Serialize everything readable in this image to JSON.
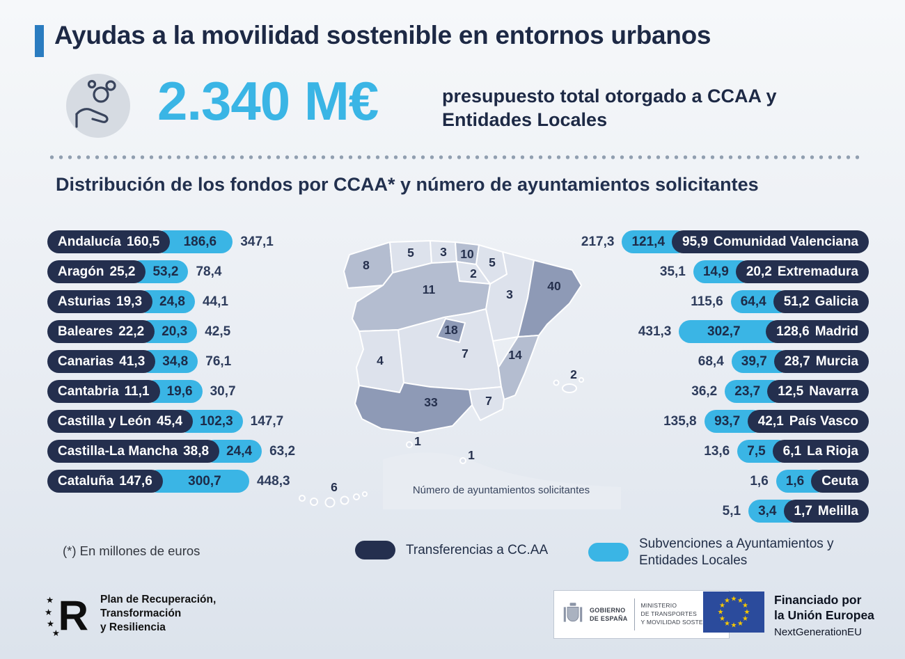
{
  "colors": {
    "background_top": "#f6f8fa",
    "background_bottom": "#dce3ec",
    "navy": "#242f4e",
    "cyan": "#3ab5e5",
    "accent_bar_blue": "#2a7cc0",
    "map_shade_low": "#dde2ec",
    "map_shade_mid": "#b4bdd0",
    "map_shade_high": "#8e9ab6",
    "eu_flag_blue": "#2b4b9c",
    "eu_star_yellow": "#f7c700"
  },
  "header": {
    "title": "Ayudas a la movilidad sostenible en entornos urbanos",
    "amount": "2.340 M€",
    "amount_description": "presupuesto total otorgado a CCAA y Entidades Locales"
  },
  "section": {
    "subtitle": "Distribución de los fondos por CCAA* y número de ayuntamientos solicitantes"
  },
  "chart_data": {
    "type": "bar",
    "unit": "millones de euros",
    "title": "Distribución de los fondos por CCAA* y número de ayuntamientos solicitantes",
    "categories": [
      "Andalucía",
      "Aragón",
      "Asturias",
      "Baleares",
      "Canarias",
      "Cantabria",
      "Castilla y León",
      "Castilla-La Mancha",
      "Cataluña",
      "Comunidad Valenciana",
      "Extremadura",
      "Galicia",
      "Madrid",
      "Murcia",
      "Navarra",
      "País Vasco",
      "La Rioja",
      "Ceuta",
      "Melilla"
    ],
    "series": [
      {
        "name": "Transferencias a CC.AA",
        "values": [
          160.5,
          25.2,
          19.3,
          22.2,
          41.3,
          11.1,
          45.4,
          38.8,
          147.6,
          95.9,
          20.2,
          51.2,
          128.6,
          28.7,
          12.5,
          42.1,
          6.1,
          null,
          1.7
        ]
      },
      {
        "name": "Subvenciones a Ayuntamientos y Entidades Locales",
        "values": [
          186.6,
          53.2,
          24.8,
          20.3,
          34.8,
          19.6,
          102.3,
          24.4,
          300.7,
          121.4,
          14.9,
          64.4,
          302.7,
          39.7,
          23.7,
          93.7,
          7.5,
          1.6,
          3.4
        ]
      }
    ],
    "totals": [
      347.1,
      78.4,
      44.1,
      42.5,
      76.1,
      30.7,
      147.7,
      63.2,
      448.3,
      217.3,
      35.1,
      115.6,
      431.3,
      68.4,
      36.2,
      135.8,
      13.6,
      1.6,
      5.1
    ],
    "left_rows": [
      {
        "name": "Andalucía",
        "transferencias": "160,5",
        "subvenciones": "186,6",
        "total": "347,1"
      },
      {
        "name": "Aragón",
        "transferencias": "25,2",
        "subvenciones": "53,2",
        "total": "78,4"
      },
      {
        "name": "Asturias",
        "transferencias": "19,3",
        "subvenciones": "24,8",
        "total": "44,1"
      },
      {
        "name": "Baleares",
        "transferencias": "22,2",
        "subvenciones": "20,3",
        "total": "42,5"
      },
      {
        "name": "Canarias",
        "transferencias": "41,3",
        "subvenciones": "34,8",
        "total": "76,1"
      },
      {
        "name": "Cantabria",
        "transferencias": "11,1",
        "subvenciones": "19,6",
        "total": "30,7"
      },
      {
        "name": "Castilla y León",
        "transferencias": "45,4",
        "subvenciones": "102,3",
        "total": "147,7"
      },
      {
        "name": "Castilla-La Mancha",
        "transferencias": "38,8",
        "subvenciones": "24,4",
        "total": "63,2"
      },
      {
        "name": "Cataluña",
        "transferencias": "147,6",
        "subvenciones": "300,7",
        "total": "448,3"
      }
    ],
    "right_rows": [
      {
        "name": "Comunidad Valenciana",
        "total": "217,3",
        "subvenciones": "121,4",
        "transferencias": "95,9"
      },
      {
        "name": "Extremadura",
        "total": "35,1",
        "subvenciones": "14,9",
        "transferencias": "20,2"
      },
      {
        "name": "Galicia",
        "total": "115,6",
        "subvenciones": "64,4",
        "transferencias": "51,2"
      },
      {
        "name": "Madrid",
        "total": "431,3",
        "subvenciones": "302,7",
        "transferencias": "128,6"
      },
      {
        "name": "Murcia",
        "total": "68,4",
        "subvenciones": "39,7",
        "transferencias": "28,7"
      },
      {
        "name": "Navarra",
        "total": "36,2",
        "subvenciones": "23,7",
        "transferencias": "12,5"
      },
      {
        "name": "País Vasco",
        "total": "135,8",
        "subvenciones": "93,7",
        "transferencias": "42,1"
      },
      {
        "name": "La Rioja",
        "total": "13,6",
        "subvenciones": "7,5",
        "transferencias": "6,1"
      },
      {
        "name": "Ceuta",
        "total": "1,6",
        "subvenciones": "1,6",
        "transferencias": null
      },
      {
        "name": "Melilla",
        "total": "5,1",
        "subvenciones": "3,4",
        "transferencias": "1,7"
      }
    ],
    "ayuntamientos_solicitantes": {
      "galicia": 8,
      "asturias": 5,
      "cantabria": 3,
      "pais_vasco": 10,
      "navarra": 5,
      "la_rioja": 2,
      "castilla_y_leon": 11,
      "aragon": 3,
      "cataluna": 40,
      "madrid": 18,
      "castilla_la_mancha": 7,
      "comunidad_valenciana": 14,
      "extremadura": 4,
      "andalucia": 33,
      "murcia": 7,
      "baleares": 2,
      "ceuta": 1,
      "melilla": 1,
      "canarias": 6
    }
  },
  "map": {
    "caption": "Número de ayuntamientos solicitantes"
  },
  "legend": {
    "footnote": "(*) En millones de euros",
    "transferencias_label": "Transferencias a CC.AA",
    "subvenciones_label": "Subvenciones a Ayuntamientos y Entidades Locales"
  },
  "footer": {
    "prtr": {
      "line1": "Plan de Recuperación,",
      "line2": "Transformación",
      "line3": "y Resiliencia"
    },
    "gobierno": {
      "line1": "GOBIERNO",
      "line2": "DE ESPAÑA",
      "ministry1": "MINISTERIO",
      "ministry2": "DE TRANSPORTES",
      "ministry3": "Y MOVILIDAD SOSTENIBLE"
    },
    "eu": {
      "line1": "Financiado por",
      "line2": "la Unión Europea",
      "line3": "NextGenerationEU"
    }
  }
}
